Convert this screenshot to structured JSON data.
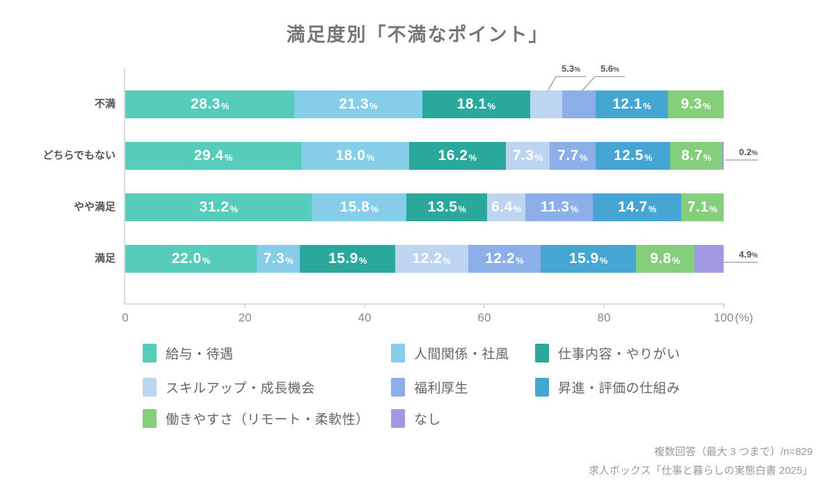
{
  "title": "満足度別「不満なポイント」",
  "chart_data": {
    "type": "bar",
    "variant": "stacked-horizontal-100pct",
    "unit": "%",
    "xlim": [
      0,
      100
    ],
    "x_ticks": [
      "0",
      "20",
      "40",
      "60",
      "80",
      "100"
    ],
    "x_axis_unit": "(%)",
    "grid": "off",
    "legend_position": "bottom",
    "categories": [
      "不満",
      "どちらでもない",
      "やや満足",
      "満足"
    ],
    "series": [
      {
        "name": "給与・待遇",
        "color": "#56CDBB",
        "values": [
          28.3,
          29.4,
          31.2,
          22.0
        ]
      },
      {
        "name": "人間関係・社風",
        "color": "#86CDE9",
        "values": [
          21.3,
          18.0,
          15.8,
          7.3
        ]
      },
      {
        "name": "仕事内容・やりがい",
        "color": "#2AA89B",
        "values": [
          18.1,
          16.2,
          13.5,
          15.9
        ]
      },
      {
        "name": "スキルアップ・成長機会",
        "color": "#BED5F2",
        "values": [
          5.3,
          7.3,
          6.4,
          12.2
        ]
      },
      {
        "name": "福利厚生",
        "color": "#8CAFEA",
        "values": [
          5.6,
          7.7,
          11.3,
          12.2
        ]
      },
      {
        "name": "昇進・評価の仕組み",
        "color": "#45A6D4",
        "values": [
          12.1,
          12.5,
          14.7,
          15.9
        ]
      },
      {
        "name": "働きやすさ（リモート・柔軟性）",
        "color": "#85CF7C",
        "values": [
          9.3,
          8.7,
          7.1,
          9.8
        ]
      },
      {
        "name": "なし",
        "color": "#9E99E2",
        "values": [
          0,
          0.2,
          0,
          4.9
        ]
      }
    ],
    "callouts": [
      {
        "category": 0,
        "series": 3,
        "label": "5.3%"
      },
      {
        "category": 0,
        "series": 4,
        "label": "5.6%"
      },
      {
        "category": 1,
        "series": 7,
        "label": "0.2%"
      },
      {
        "category": 3,
        "series": 7,
        "label": "4.9%"
      }
    ]
  },
  "footer": {
    "line1": "複数回答（最大 3 つまで）/n=829",
    "line2": "求人ボックス「仕事と暮らしの実態白書 2025」"
  }
}
